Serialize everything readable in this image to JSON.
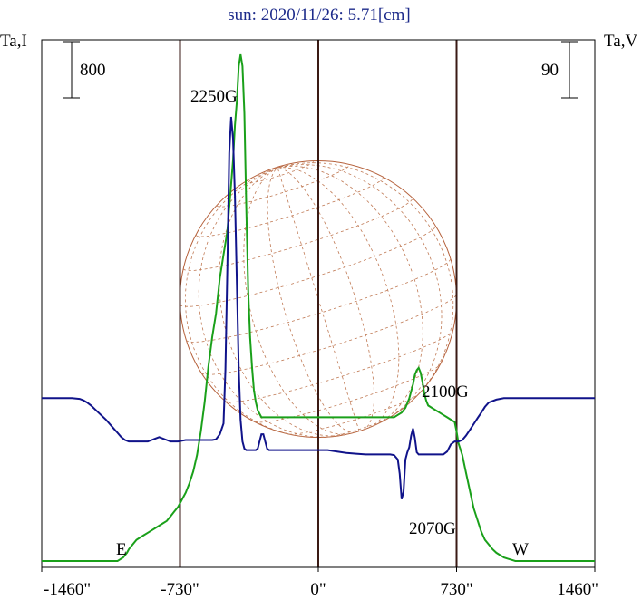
{
  "chart_data": {
    "type": "line",
    "title": "sun: 2020/11/26: 5.71[cm]",
    "left_axis_label": "Ta,I",
    "right_axis_label": "Ta,V",
    "left_scale_bar": "800",
    "right_scale_bar": "90",
    "xlim": [
      -1460,
      1460
    ],
    "x_ticks": [
      -1460,
      -730,
      0,
      730,
      1460
    ],
    "x_tick_labels": [
      "-1460\"",
      "-730\"",
      "0\"",
      "730\"",
      "1460\""
    ],
    "vertical_lines_x": [
      -730,
      0,
      730
    ],
    "limb_labels": [
      "E",
      "W"
    ],
    "solar_disk_radius": 730,
    "annotations": [
      {
        "text": "2250G",
        "x": -425
      },
      {
        "text": "2100G",
        "x": 520
      },
      {
        "text": "2070G",
        "x": 470
      }
    ],
    "series": [
      {
        "color": "#1aa01a",
        "x": [
          -1460,
          -1380,
          -1300,
          -1250,
          -1200,
          -1150,
          -1120,
          -1100,
          -1080,
          -1060,
          -1050,
          -1040,
          -1030,
          -1020,
          -1010,
          -1000,
          -990,
          -980,
          -960,
          -940,
          -920,
          -900,
          -880,
          -860,
          -840,
          -820,
          -800,
          -780,
          -760,
          -740,
          -720,
          -700,
          -680,
          -660,
          -640,
          -620,
          -600,
          -580,
          -560,
          -540,
          -520,
          -500,
          -490,
          -480,
          -470,
          -460,
          -450,
          -440,
          -430,
          -420,
          -410,
          -400,
          -390,
          -380,
          -370,
          -360,
          -350,
          -340,
          -330,
          -320,
          -310,
          -300,
          -280,
          -260,
          -240,
          -220,
          -200,
          -180,
          -160,
          -140,
          -120,
          -100,
          -80,
          -60,
          -40,
          -20,
          0,
          50,
          100,
          150,
          200,
          250,
          300,
          350,
          400,
          420,
          440,
          460,
          470,
          480,
          490,
          500,
          510,
          520,
          530,
          540,
          550,
          560,
          570,
          580,
          600,
          620,
          640,
          660,
          680,
          700,
          720,
          730,
          740,
          760,
          780,
          800,
          820,
          840,
          860,
          880,
          900,
          920,
          940,
          960,
          980,
          1000,
          1020,
          1040,
          1060,
          1080,
          1100,
          1120,
          1150,
          1200,
          1250,
          1300,
          1350,
          1400,
          1460
        ],
        "y": [
          0,
          0,
          0,
          0,
          0,
          0,
          0,
          0,
          0,
          0,
          1,
          2,
          3,
          5,
          7,
          10,
          12,
          14,
          18,
          20,
          22,
          24,
          26,
          28,
          30,
          32,
          34,
          38,
          42,
          46,
          52,
          58,
          66,
          76,
          90,
          110,
          135,
          165,
          190,
          210,
          240,
          260,
          270,
          280,
          300,
          320,
          340,
          370,
          390,
          420,
          430,
          420,
          380,
          300,
          230,
          190,
          165,
          145,
          135,
          128,
          125,
          122,
          122,
          122,
          122,
          122,
          122,
          122,
          122,
          122,
          122,
          122,
          122,
          122,
          122,
          122,
          122,
          122,
          122,
          122,
          122,
          122,
          122,
          122,
          122,
          124,
          126,
          130,
          134,
          138,
          144,
          150,
          158,
          162,
          164,
          160,
          152,
          142,
          136,
          132,
          130,
          128,
          126,
          124,
          122,
          120,
          118,
          110,
          100,
          90,
          75,
          60,
          45,
          35,
          25,
          18,
          14,
          10,
          7,
          5,
          3,
          2,
          1,
          0,
          0,
          0,
          0,
          0,
          0,
          0,
          0,
          0,
          0,
          0,
          0
        ]
      },
      {
        "color": "#10138a",
        "x": [
          -1460,
          -1380,
          -1300,
          -1260,
          -1240,
          -1220,
          -1200,
          -1180,
          -1160,
          -1140,
          -1120,
          -1100,
          -1080,
          -1060,
          -1040,
          -1020,
          -1000,
          -980,
          -960,
          -940,
          -920,
          -900,
          -880,
          -860,
          -840,
          -820,
          -800,
          -780,
          -760,
          -740,
          -720,
          -700,
          -680,
          -660,
          -640,
          -620,
          -600,
          -580,
          -560,
          -540,
          -520,
          -500,
          -490,
          -480,
          -470,
          -460,
          -450,
          -440,
          -430,
          -420,
          -410,
          -400,
          -390,
          -380,
          -370,
          -360,
          -350,
          -340,
          -330,
          -320,
          -310,
          -300,
          -290,
          -280,
          -270,
          -260,
          -250,
          -240,
          -220,
          -200,
          -180,
          -160,
          -140,
          -120,
          -100,
          -80,
          -60,
          -40,
          -20,
          0,
          50,
          100,
          150,
          200,
          250,
          300,
          350,
          380,
          400,
          420,
          430,
          440,
          450,
          460,
          470,
          480,
          490,
          500,
          510,
          520,
          530,
          540,
          560,
          580,
          600,
          620,
          640,
          660,
          680,
          700,
          720,
          730,
          740,
          760,
          780,
          800,
          820,
          840,
          860,
          880,
          900,
          940,
          980,
          1020,
          1060,
          1100,
          1150,
          1200,
          1250,
          1300,
          1350,
          1400,
          1460
        ],
        "y": [
          80,
          80,
          80,
          79,
          77,
          74,
          70,
          65,
          60,
          55,
          50,
          44,
          38,
          32,
          26,
          22,
          20,
          20,
          20,
          20,
          20,
          20,
          22,
          24,
          26,
          24,
          22,
          20,
          20,
          20,
          21,
          22,
          22,
          22,
          22,
          22,
          22,
          22,
          22,
          23,
          30,
          45,
          120,
          260,
          420,
          470,
          440,
          360,
          240,
          120,
          50,
          20,
          10,
          8,
          8,
          8,
          8,
          8,
          8,
          10,
          20,
          30,
          30,
          20,
          10,
          8,
          8,
          8,
          8,
          8,
          8,
          8,
          8,
          8,
          8,
          8,
          8,
          8,
          8,
          8,
          8,
          6,
          4,
          3,
          2,
          2,
          2,
          2,
          1,
          -5,
          -25,
          -60,
          -50,
          -5,
          5,
          12,
          28,
          38,
          25,
          5,
          2,
          2,
          2,
          2,
          2,
          2,
          2,
          2,
          6,
          16,
          20,
          20,
          20,
          22,
          28,
          36,
          44,
          52,
          60,
          68,
          74,
          78,
          80,
          80,
          80,
          80,
          80,
          80,
          80,
          80,
          80,
          80,
          80
        ]
      }
    ]
  }
}
